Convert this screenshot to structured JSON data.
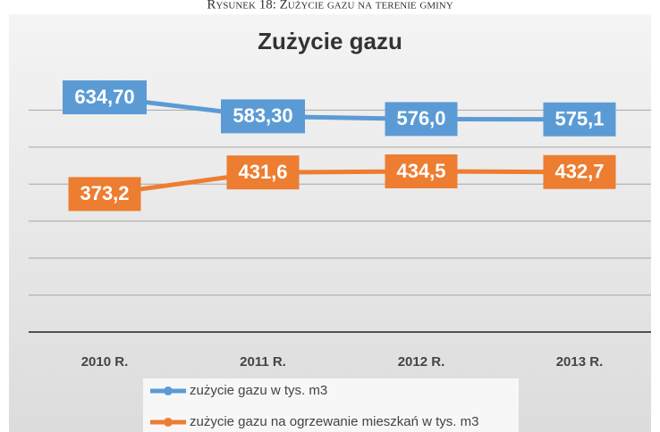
{
  "chart_data": {
    "type": "line",
    "caption": "Rysunek 18: Zużycie gazu na terenie gminy",
    "title": "Zużycie gazu",
    "categories": [
      "2010 R.",
      "2011 R.",
      "2012 R.",
      "2013 R."
    ],
    "series": [
      {
        "name": "zużycie gazu w tys. m3",
        "color": "#5b9bd5",
        "values": [
          634.7,
          583.3,
          576.0,
          575.1
        ],
        "value_labels": [
          "634,70",
          "583,30",
          "576,0",
          "575,1"
        ]
      },
      {
        "name": "zużycie gazu na ogrzewanie mieszkań w tys. m3",
        "color": "#ed7d31",
        "values": [
          373.2,
          431.6,
          434.5,
          432.7
        ],
        "value_labels": [
          "373,2",
          "431,6",
          "434,5",
          "432,7"
        ]
      }
    ],
    "ylim": [
      0,
      700
    ],
    "yticks": [
      0,
      100,
      200,
      300,
      400,
      500,
      600
    ],
    "grid": true,
    "legend": "bottom"
  }
}
